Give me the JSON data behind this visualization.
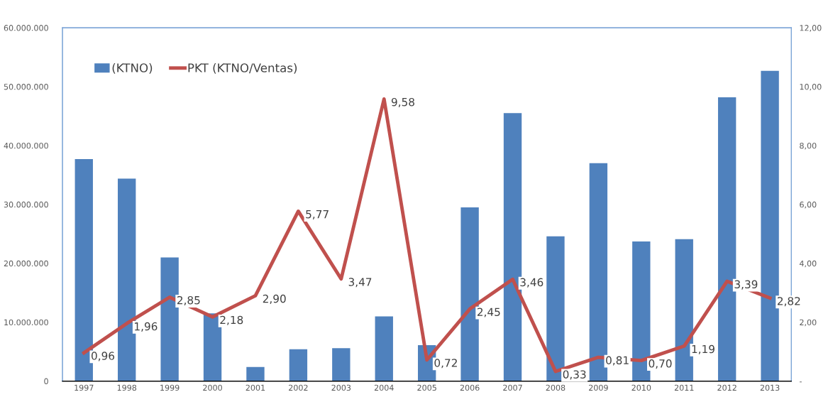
{
  "chart_data": {
    "type": "bar",
    "categories": [
      "1997",
      "1998",
      "1999",
      "2000",
      "2001",
      "2002",
      "2003",
      "2004",
      "2005",
      "2006",
      "2007",
      "2008",
      "2009",
      "2010",
      "2011",
      "2012",
      "2013"
    ],
    "series": [
      {
        "name": "(KTNO)",
        "color": "#4f81bd",
        "values": [
          37700000,
          34400000,
          21000000,
          11500000,
          2400000,
          5400000,
          5600000,
          11000000,
          6100000,
          29500000,
          45500000,
          24600000,
          37000000,
          23700000,
          24100000,
          48200000,
          52700000
        ]
      },
      {
        "name": "PKT (KTNO/Ventas)",
        "type": "line",
        "axis": "y2",
        "color": "#c0504d",
        "values": [
          0.96,
          1.96,
          2.85,
          2.18,
          2.9,
          5.77,
          3.47,
          9.58,
          0.72,
          2.45,
          3.46,
          0.33,
          0.81,
          0.7,
          1.19,
          3.39,
          2.82
        ],
        "value_labels": [
          "0,96",
          "1,96",
          "2,85",
          "2,18",
          "2,90",
          "5,77",
          "3,47",
          "9,58",
          "0,72",
          "2,45",
          "3,46",
          "0,33",
          "0,81",
          "0,70",
          "1,19",
          "3,39",
          "2,82"
        ]
      }
    ],
    "ylim": [
      0,
      60000000
    ],
    "yticks": [
      {
        "value": 0,
        "label": "0"
      },
      {
        "value": 10000000,
        "label": "10.000.000"
      },
      {
        "value": 20000000,
        "label": "20.000.000"
      },
      {
        "value": 30000000,
        "label": "30.000.000"
      },
      {
        "value": 40000000,
        "label": "40.000.000"
      },
      {
        "value": 50000000,
        "label": "50.000.000"
      },
      {
        "value": 60000000,
        "label": "60.000.000"
      }
    ],
    "y2lim": [
      0,
      12
    ],
    "y2ticks": [
      {
        "value": 0,
        "label": "-"
      },
      {
        "value": 2,
        "label": "2,00"
      },
      {
        "value": 4,
        "label": "4,00"
      },
      {
        "value": 6,
        "label": "6,00"
      },
      {
        "value": 8,
        "label": "8,00"
      },
      {
        "value": 10,
        "label": "10,00"
      },
      {
        "value": 12,
        "label": "12,00"
      }
    ],
    "grid": false,
    "legend": "top left",
    "marker": "none",
    "line_style": "solid"
  }
}
